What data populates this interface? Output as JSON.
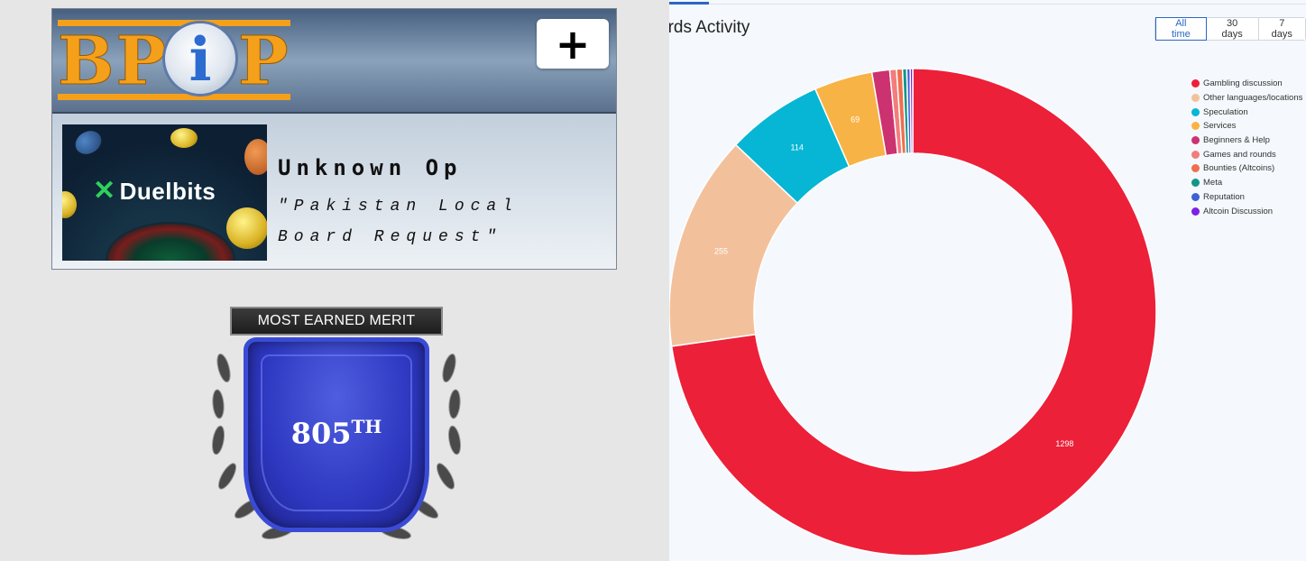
{
  "bpip": {
    "logo_text_left": "BP",
    "logo_text_i": "i",
    "logo_text_right": "P",
    "add_label": "+",
    "promo_brand": "Duelbits",
    "op_name": "Unknown Op",
    "op_description": "\"Pakistan Local Board Request\""
  },
  "merit": {
    "ribbon": "MOST EARNED MERIT",
    "rank_number": "805",
    "rank_suffix": "TH"
  },
  "boards": {
    "title": "ards Activity",
    "ranges": [
      "All time",
      "30 days",
      "7 days"
    ],
    "selected_range": "All time",
    "legend": [
      {
        "name": "Gambling discussion",
        "color": "#ec2039"
      },
      {
        "name": "Other languages/locations",
        "color": "#f2c19c"
      },
      {
        "name": "Speculation",
        "color": "#06b6d4"
      },
      {
        "name": "Services",
        "color": "#f8b346"
      },
      {
        "name": "Beginners & Help",
        "color": "#cc3270"
      },
      {
        "name": "Games and rounds",
        "color": "#f37c7c"
      },
      {
        "name": "Bounties (Altcoins)",
        "color": "#ee6f4f"
      },
      {
        "name": "Meta",
        "color": "#139688"
      },
      {
        "name": "Reputation",
        "color": "#3f5fd6"
      },
      {
        "name": "Altcoin Discussion",
        "color": "#7c22e0"
      }
    ]
  },
  "chart_data": {
    "type": "pie",
    "donut": true,
    "title": "",
    "legend_position": "right",
    "categories": [
      "Gambling discussion",
      "Other languages/locations",
      "Speculation",
      "Services",
      "Beginners & Help",
      "Games and rounds",
      "Bounties (Altcoins)",
      "Meta",
      "Reputation",
      "Altcoin Discussion"
    ],
    "values": [
      1298,
      255,
      114,
      69,
      21,
      8,
      7,
      5,
      4,
      3
    ],
    "data_labels": [
      "1298",
      "255",
      "114",
      "69",
      "",
      "",
      "",
      "",
      "",
      ""
    ],
    "colors": [
      "#ec2039",
      "#f2c19c",
      "#06b6d4",
      "#f8b346",
      "#cc3270",
      "#f37c7c",
      "#ee6f4f",
      "#139688",
      "#3f5fd6",
      "#7c22e0"
    ]
  }
}
